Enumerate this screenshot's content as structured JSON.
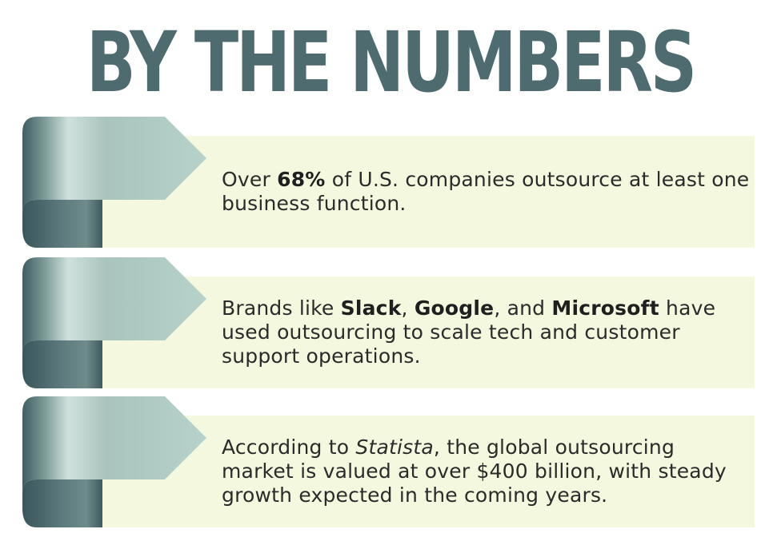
{
  "title": "BY THE NUMBERS",
  "cards": [
    {
      "segments": [
        {
          "text": "Over ",
          "style": "normal"
        },
        {
          "text": "68%",
          "style": "bold"
        },
        {
          "text": " of U.S. companies outsource at least one business function.",
          "style": "normal"
        }
      ]
    },
    {
      "segments": [
        {
          "text": "Brands like ",
          "style": "normal"
        },
        {
          "text": "Slack",
          "style": "bold"
        },
        {
          "text": ", ",
          "style": "normal"
        },
        {
          "text": "Google",
          "style": "bold"
        },
        {
          "text": ", and ",
          "style": "normal"
        },
        {
          "text": "Microsoft",
          "style": "bold"
        },
        {
          "text": " have used outsourcing to scale tech and customer support operations.",
          "style": "normal"
        }
      ]
    },
    {
      "segments": [
        {
          "text": "According to ",
          "style": "normal"
        },
        {
          "text": "Statista",
          "style": "italic"
        },
        {
          "text": ", the global outsourcing market is valued at over $400 billion, with steady growth expected in the coming years.",
          "style": "normal"
        }
      ]
    }
  ],
  "colors": {
    "title": "#4e6b70",
    "panel": "#f3f8df",
    "ribbon_light": "#b7d3cc",
    "ribbon_dark": "#3f5d63"
  }
}
